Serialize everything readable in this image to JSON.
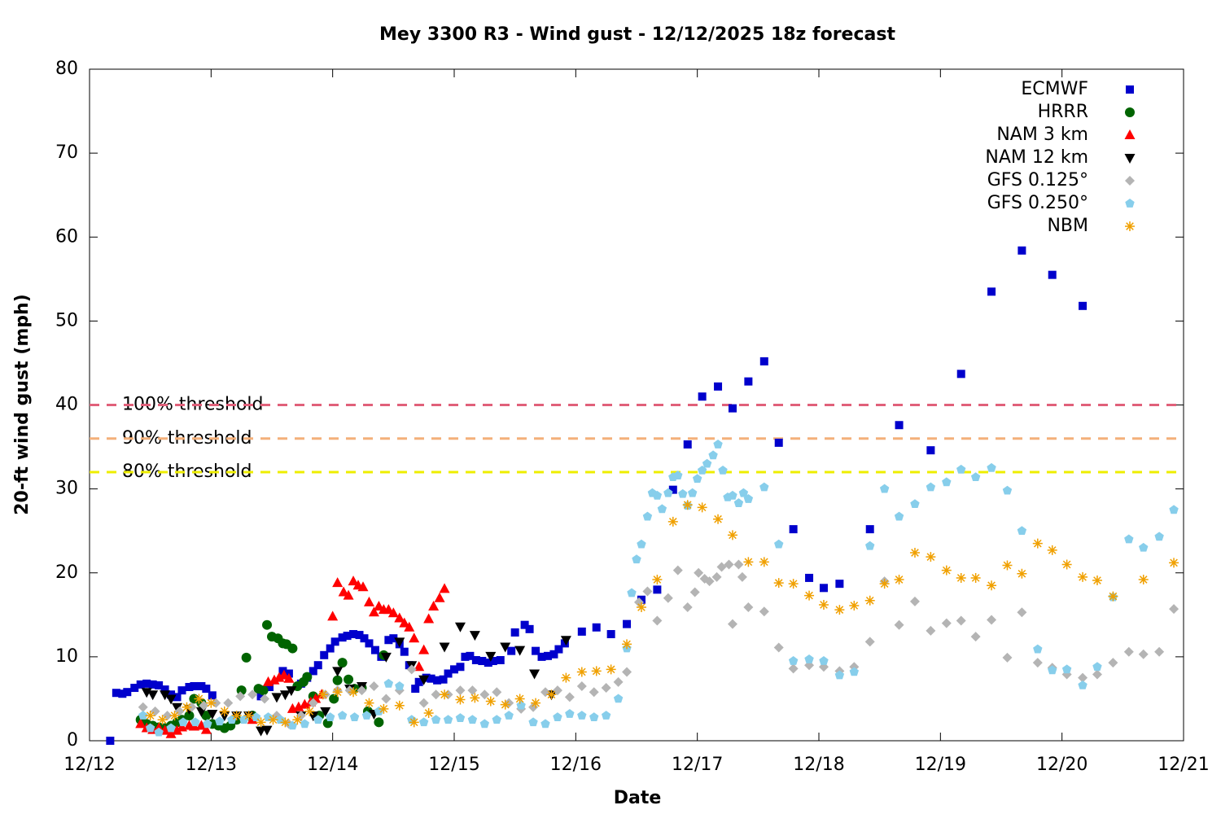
{
  "chart_data": {
    "type": "scatter",
    "title": "Mey 3300 R3 - Wind gust - 12/12/2025 18z forecast",
    "xlabel": "Date",
    "ylabel": "20-ft wind gust (mph)",
    "xlim": [
      0,
      9
    ],
    "xticks": [
      {
        "value": 0,
        "label": "12/12"
      },
      {
        "value": 1,
        "label": "12/13"
      },
      {
        "value": 2,
        "label": "12/14"
      },
      {
        "value": 3,
        "label": "12/15"
      },
      {
        "value": 4,
        "label": "12/16"
      },
      {
        "value": 5,
        "label": "12/17"
      },
      {
        "value": 6,
        "label": "12/18"
      },
      {
        "value": 7,
        "label": "12/19"
      },
      {
        "value": 8,
        "label": "12/20"
      },
      {
        "value": 9,
        "label": "12/21"
      }
    ],
    "ylim": [
      0,
      80
    ],
    "yticks": [
      0,
      10,
      20,
      30,
      40,
      50,
      60,
      70,
      80
    ],
    "grid": false,
    "legend": "upper right",
    "thresholds": [
      {
        "label": "100% threshold",
        "value": 40,
        "color": "#e0607a"
      },
      {
        "label": "90% threshold",
        "value": 36,
        "color": "#f4b07a"
      },
      {
        "label": "80% threshold",
        "value": 32,
        "color": "#eeee00"
      }
    ],
    "series": [
      {
        "name": "ECMWF",
        "color": "#0000cc",
        "marker": "square",
        "x": [
          0.17,
          0.22,
          0.27,
          0.31,
          0.37,
          0.42,
          0.47,
          0.52,
          0.57,
          0.62,
          0.67,
          0.72,
          0.76,
          0.82,
          0.86,
          0.92,
          0.96,
          1.01,
          1.41,
          1.48,
          1.59,
          1.64,
          1.74,
          1.79,
          1.84,
          1.88,
          1.93,
          1.98,
          2.02,
          2.08,
          2.12,
          2.17,
          2.22,
          2.26,
          2.3,
          2.35,
          2.4,
          2.46,
          2.5,
          2.55,
          2.59,
          2.63,
          2.68,
          2.71,
          2.77,
          2.81,
          2.86,
          2.91,
          2.95,
          3.0,
          3.05,
          3.09,
          3.13,
          3.18,
          3.23,
          3.28,
          3.32,
          3.38,
          3.47,
          3.5,
          3.58,
          3.62,
          3.67,
          3.72,
          3.77,
          3.82,
          3.86,
          3.91,
          4.05,
          4.17,
          4.29,
          4.42,
          4.54,
          4.67,
          4.8,
          4.92,
          5.04,
          5.17,
          5.29,
          5.42,
          5.55,
          5.67,
          5.79,
          5.92,
          6.04,
          6.17,
          6.42,
          6.66,
          6.92,
          7.17,
          7.42,
          7.67,
          7.92,
          8.17
        ],
        "values": [
          0,
          5.7,
          5.6,
          5.8,
          6.3,
          6.7,
          6.8,
          6.7,
          6.6,
          6.1,
          5.5,
          5.2,
          6.0,
          6.4,
          6.5,
          6.5,
          6.2,
          5.4,
          5.3,
          6.4,
          8.3,
          8.0,
          6.8,
          7.5,
          8.3,
          9.0,
          10.2,
          11.0,
          11.8,
          12.3,
          12.5,
          12.7,
          12.6,
          12.2,
          11.6,
          10.8,
          10.0,
          12.0,
          12.2,
          11.5,
          10.6,
          9.0,
          6.2,
          7.0,
          7.5,
          7.4,
          7.2,
          7.3,
          8.0,
          8.5,
          8.8,
          10.0,
          10.1,
          9.6,
          9.5,
          9.3,
          9.5,
          9.6,
          10.7,
          12.9,
          13.8,
          13.3,
          10.7,
          10.0,
          10.1,
          10.3,
          10.9,
          11.6,
          13.0,
          13.5,
          12.7,
          13.9,
          16.8,
          18.0,
          29.9,
          35.3,
          41.0,
          42.2,
          39.6,
          42.8,
          45.2,
          35.5,
          25.2,
          19.4,
          18.2,
          18.7,
          25.2,
          37.6,
          34.6,
          43.7,
          53.5,
          58.4,
          55.5,
          51.8
        ]
      },
      {
        "name": "HRRR",
        "color": "#006400",
        "marker": "circle",
        "x": [
          0.42,
          0.47,
          0.52,
          0.57,
          0.62,
          0.67,
          0.72,
          0.76,
          0.82,
          0.86,
          0.92,
          0.96,
          1.01,
          1.06,
          1.11,
          1.16,
          1.21,
          1.25,
          1.29,
          1.34,
          1.39,
          1.43,
          1.46,
          1.5,
          1.55,
          1.59,
          1.62,
          1.67,
          1.71,
          1.76,
          1.79,
          1.84,
          1.89,
          1.96,
          2.01,
          2.04,
          2.08,
          2.13,
          2.18,
          2.24,
          2.29,
          2.38,
          2.42
        ],
        "values": [
          2.5,
          2.0,
          1.8,
          1.6,
          1.5,
          1.8,
          2.2,
          2.5,
          3.0,
          5.0,
          4.5,
          3.0,
          2.0,
          1.8,
          1.5,
          1.8,
          2.5,
          6.0,
          9.9,
          3.0,
          6.2,
          6.0,
          13.8,
          12.4,
          12.2,
          11.6,
          11.5,
          11.0,
          6.5,
          7.0,
          7.6,
          5.3,
          3.0,
          2.1,
          5.0,
          7.2,
          9.3,
          7.3,
          6.2,
          6.3,
          3.5,
          2.2,
          10.2
        ]
      },
      {
        "name": "NAM 3 km",
        "color": "#ff0000",
        "marker": "triangle-up",
        "x": [
          0.42,
          0.47,
          0.52,
          0.57,
          0.62,
          0.67,
          0.72,
          0.76,
          0.82,
          0.86,
          0.92,
          0.96,
          1.34,
          1.47,
          1.52,
          1.56,
          1.6,
          1.64,
          1.67,
          1.72,
          1.77,
          1.82,
          1.86,
          1.91,
          2.0,
          2.04,
          2.09,
          2.13,
          2.17,
          2.21,
          2.25,
          2.3,
          2.34,
          2.38,
          2.42,
          2.46,
          2.5,
          2.55,
          2.59,
          2.63,
          2.67,
          2.71,
          2.75,
          2.79,
          2.83,
          2.88,
          2.92
        ],
        "values": [
          2.0,
          1.5,
          1.3,
          1.5,
          1.2,
          0.8,
          1.2,
          1.6,
          1.8,
          1.7,
          1.8,
          1.3,
          2.5,
          7.0,
          7.2,
          7.5,
          7.8,
          7.4,
          3.8,
          4.0,
          4.3,
          4.6,
          5.0,
          5.5,
          14.8,
          18.8,
          17.7,
          17.3,
          19.0,
          18.5,
          18.3,
          16.5,
          15.3,
          16.0,
          15.6,
          15.6,
          15.2,
          14.6,
          14.0,
          13.5,
          12.2,
          8.8,
          10.8,
          14.5,
          16.0,
          17.0,
          18.1
        ]
      },
      {
        "name": "NAM 12 km",
        "color": "#000000",
        "marker": "triangle-down",
        "x": [
          0.47,
          0.52,
          0.62,
          0.67,
          0.72,
          0.82,
          0.92,
          1.01,
          1.11,
          1.21,
          1.31,
          1.41,
          1.46,
          1.54,
          1.61,
          1.66,
          1.74,
          1.84,
          1.94,
          2.04,
          2.14,
          2.24,
          2.34,
          2.44,
          2.55,
          2.65,
          2.75,
          2.92,
          3.05,
          3.17,
          3.3,
          3.42,
          3.54,
          3.66,
          3.8,
          3.92
        ],
        "values": [
          5.8,
          5.5,
          5.5,
          5.0,
          4.0,
          3.8,
          3.5,
          3.2,
          3.0,
          3.0,
          3.0,
          1.2,
          1.3,
          5.2,
          5.5,
          6.0,
          3.0,
          3.0,
          3.5,
          8.3,
          6.2,
          6.5,
          3.2,
          10.0,
          11.8,
          9.0,
          7.3,
          11.2,
          13.6,
          12.6,
          10.1,
          11.2,
          10.8,
          8.0,
          5.5,
          12.0
        ]
      },
      {
        "name": "GFS 0.125°",
        "color": "#b4b4b4",
        "marker": "diamond",
        "x": [
          0.44,
          0.54,
          0.64,
          0.74,
          0.84,
          0.94,
          1.04,
          1.14,
          1.24,
          1.34,
          1.44,
          1.54,
          1.64,
          1.74,
          1.84,
          1.94,
          2.04,
          2.14,
          2.24,
          2.34,
          2.44,
          2.55,
          2.65,
          2.75,
          2.85,
          2.95,
          3.05,
          3.15,
          3.25,
          3.35,
          3.45,
          3.55,
          3.65,
          3.75,
          3.85,
          3.95,
          4.05,
          4.15,
          4.25,
          4.35,
          4.42,
          4.52,
          4.59,
          4.67,
          4.76,
          4.84,
          4.92,
          4.98,
          5.01,
          5.06,
          5.1,
          5.16,
          5.2,
          5.26,
          5.29,
          5.34,
          5.37,
          5.42,
          5.55,
          5.67,
          5.79,
          5.92,
          6.04,
          6.17,
          6.29,
          6.42,
          6.54,
          6.66,
          6.79,
          6.92,
          7.05,
          7.17,
          7.29,
          7.42,
          7.55,
          7.67,
          7.8,
          7.92,
          8.04,
          8.17,
          8.29,
          8.42,
          8.55,
          8.67,
          8.8,
          8.92
        ],
        "values": [
          4.0,
          3.5,
          3.0,
          3.5,
          4.0,
          4.2,
          4.5,
          4.5,
          5.3,
          5.5,
          5.0,
          3.0,
          2.0,
          3.0,
          4.5,
          5.5,
          6.0,
          6.0,
          6.0,
          6.5,
          5.0,
          6.0,
          8.5,
          4.5,
          5.5,
          5.5,
          6.0,
          6.0,
          5.5,
          5.8,
          4.5,
          3.8,
          4.0,
          5.8,
          6.0,
          5.2,
          6.5,
          5.8,
          6.3,
          7.0,
          8.2,
          16.5,
          17.8,
          14.3,
          17.0,
          20.3,
          15.9,
          17.7,
          20.0,
          19.3,
          19.0,
          19.5,
          20.7,
          21.0,
          13.9,
          21.0,
          19.5,
          15.9,
          15.4,
          11.1,
          8.6,
          9.0,
          8.8,
          8.3,
          8.8,
          11.8,
          19.0,
          13.8,
          16.6,
          13.1,
          14.0,
          14.3,
          12.4,
          14.4,
          9.9,
          15.3,
          9.3,
          8.7,
          7.9,
          7.5,
          7.9,
          9.3,
          10.6,
          10.3,
          10.6,
          15.7
        ]
      },
      {
        "name": "GFS 0.250°",
        "color": "#87ceeb",
        "marker": "pentagon",
        "x": [
          0.44,
          0.5,
          0.57,
          0.67,
          0.77,
          0.87,
          0.97,
          1.07,
          1.17,
          1.27,
          1.37,
          1.47,
          1.57,
          1.67,
          1.77,
          1.88,
          1.98,
          2.08,
          2.18,
          2.28,
          2.38,
          2.46,
          2.55,
          2.65,
          2.75,
          2.85,
          2.95,
          3.05,
          3.15,
          3.25,
          3.35,
          3.45,
          3.55,
          3.65,
          3.75,
          3.85,
          3.95,
          4.05,
          4.15,
          4.25,
          4.35,
          4.42,
          4.46,
          4.5,
          4.54,
          4.59,
          4.63,
          4.67,
          4.71,
          4.76,
          4.8,
          4.84,
          4.88,
          4.92,
          4.96,
          5.0,
          5.04,
          5.08,
          5.13,
          5.17,
          5.21,
          5.25,
          5.29,
          5.34,
          5.38,
          5.42,
          5.55,
          5.67,
          5.79,
          5.92,
          6.04,
          6.17,
          6.29,
          6.42,
          6.54,
          6.66,
          6.79,
          6.92,
          7.05,
          7.17,
          7.29,
          7.42,
          7.55,
          7.67,
          7.8,
          7.92,
          8.04,
          8.17,
          8.29,
          8.42,
          8.55,
          8.67,
          8.8,
          8.92
        ],
        "values": [
          3.0,
          1.5,
          1.0,
          1.5,
          2.2,
          2.2,
          2.0,
          2.3,
          2.5,
          2.5,
          2.8,
          2.8,
          2.5,
          1.8,
          2.0,
          2.5,
          2.8,
          3.0,
          2.8,
          3.0,
          3.5,
          6.8,
          6.5,
          2.5,
          2.2,
          2.5,
          2.5,
          2.7,
          2.5,
          2.0,
          2.5,
          3.0,
          4.2,
          2.2,
          2.0,
          2.8,
          3.2,
          3.0,
          2.8,
          3.0,
          5.0,
          11.0,
          17.6,
          21.6,
          23.4,
          26.7,
          29.5,
          29.2,
          27.6,
          29.5,
          31.4,
          31.6,
          29.4,
          28.0,
          29.5,
          31.2,
          32.2,
          33.0,
          34.0,
          35.3,
          32.2,
          29.0,
          29.2,
          28.3,
          29.5,
          28.8,
          30.2,
          23.4,
          9.5,
          9.7,
          9.5,
          7.8,
          8.2,
          23.2,
          30.0,
          26.7,
          28.2,
          30.2,
          30.8,
          32.3,
          31.4,
          32.5,
          29.8,
          25.0,
          10.9,
          8.4,
          8.5,
          6.6,
          8.8,
          17.1,
          24.0,
          23.0,
          24.3,
          27.5
        ]
      },
      {
        "name": "NBM",
        "color": "#f0a000",
        "marker": "asterisk",
        "x": [
          0.5,
          0.6,
          0.7,
          0.8,
          0.9,
          1.0,
          1.11,
          1.21,
          1.31,
          1.41,
          1.51,
          1.61,
          1.71,
          1.81,
          1.92,
          2.04,
          2.17,
          2.3,
          2.42,
          2.55,
          2.67,
          2.79,
          2.92,
          3.05,
          3.17,
          3.3,
          3.42,
          3.54,
          3.67,
          3.8,
          3.92,
          4.05,
          4.17,
          4.29,
          4.42,
          4.54,
          4.67,
          4.8,
          4.92,
          5.04,
          5.17,
          5.29,
          5.42,
          5.55,
          5.67,
          5.79,
          5.92,
          6.04,
          6.17,
          6.29,
          6.42,
          6.54,
          6.66,
          6.79,
          6.92,
          7.05,
          7.17,
          7.29,
          7.42,
          7.55,
          7.67,
          7.8,
          7.92,
          8.04,
          8.17,
          8.29,
          8.42,
          8.67,
          8.92
        ],
        "values": [
          3.0,
          2.5,
          3.0,
          4.0,
          5.0,
          4.5,
          3.5,
          3.0,
          3.0,
          2.2,
          2.5,
          2.2,
          2.5,
          3.5,
          5.5,
          5.8,
          5.8,
          4.5,
          3.8,
          4.2,
          2.2,
          3.3,
          5.5,
          4.9,
          5.1,
          4.7,
          4.3,
          5.0,
          4.5,
          5.5,
          7.5,
          8.2,
          8.3,
          8.5,
          11.5,
          15.9,
          19.2,
          26.1,
          28.1,
          27.8,
          26.4,
          24.5,
          21.3,
          21.3,
          18.8,
          18.7,
          17.3,
          16.2,
          15.6,
          16.1,
          16.7,
          18.7,
          19.2,
          22.4,
          21.9,
          20.3,
          19.4,
          19.4,
          18.5,
          20.9,
          19.9,
          23.5,
          22.7,
          21.0,
          19.5,
          19.1,
          17.2,
          19.2,
          21.2
        ]
      }
    ]
  }
}
